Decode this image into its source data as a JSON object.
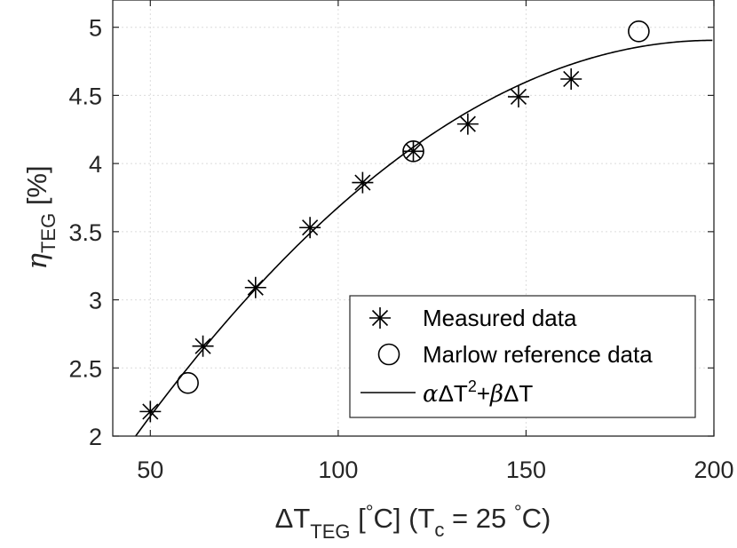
{
  "chart_data": {
    "type": "scatter",
    "xlabel": {
      "main": "ΔT",
      "sub": "TEG",
      "bracket_open": " [",
      "degree": "°",
      "unit": "C]",
      "paren": " (T",
      "paren_sub": "c",
      "paren_eq": " = 25 ",
      "paren_end": "C)"
    },
    "ylabel": {
      "main": "η",
      "sub": "TEG",
      "unit": " [%]"
    },
    "xlim": [
      40,
      200
    ],
    "ylim": [
      2,
      5.2
    ],
    "xticks": [
      50,
      100,
      150,
      200
    ],
    "yticks": [
      2,
      2.5,
      3,
      3.5,
      4,
      4.5,
      5
    ],
    "xtick_labels": [
      "50",
      "100",
      "150",
      "200"
    ],
    "ytick_labels": [
      "2",
      "2.5",
      "3",
      "3.5",
      "4",
      "4.5",
      "5"
    ],
    "grid": true,
    "legend_position": "bottom-right",
    "series": [
      {
        "name": "Measured data",
        "marker": "asterisk",
        "x": [
          50,
          64,
          78,
          92.5,
          106.5,
          120,
          134.5,
          148,
          162
        ],
        "y": [
          2.18,
          2.66,
          3.09,
          3.53,
          3.86,
          4.09,
          4.29,
          4.49,
          4.62
        ]
      },
      {
        "name": "Marlow reference data",
        "marker": "circle",
        "x": [
          60,
          120,
          180
        ],
        "y": [
          2.39,
          4.09,
          4.97
        ]
      },
      {
        "name": "fit",
        "style": "line",
        "model": "αΔT² + βΔT",
        "alpha": -0.0001227,
        "beta": 0.04906
      }
    ],
    "legend": {
      "measured_label": "Measured data",
      "marlow_label": "Marlow reference data",
      "fit_alpha": "α",
      "fit_delta1": "ΔT",
      "fit_sup": "2",
      "fit_plus": "+",
      "fit_beta": "β",
      "fit_delta2": "ΔT"
    },
    "colors": {
      "ink": "#000000",
      "axis": "#262626",
      "grid": "#dcdcdc"
    }
  }
}
